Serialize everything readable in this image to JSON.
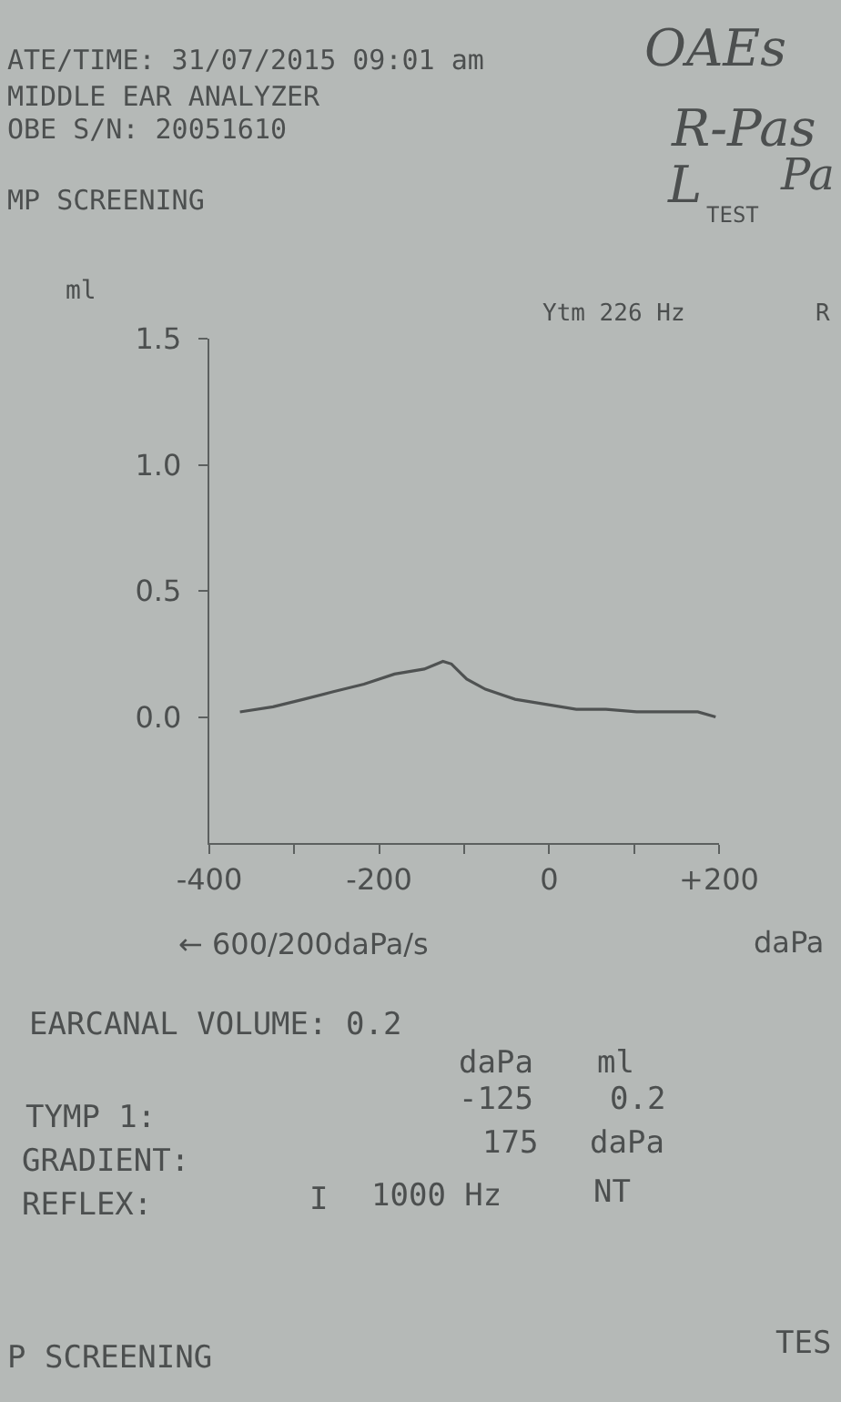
{
  "chart_data": {
    "type": "line",
    "x": [
      -364,
      -325,
      -289,
      -254,
      -218,
      -182,
      -147,
      -125,
      -115,
      -97,
      -75,
      -40,
      -4,
      32,
      67,
      103,
      139,
      175,
      196
    ],
    "series": [
      {
        "color": "#4f5252",
        "values": [
          0.02,
          0.04,
          0.07,
          0.1,
          0.13,
          0.17,
          0.19,
          0.22,
          0.21,
          0.15,
          0.11,
          0.07,
          0.05,
          0.03,
          0.03,
          0.02,
          0.02,
          0.02,
          0.0
        ]
      }
    ],
    "xlim": [
      -400,
      200
    ],
    "ylim": [
      -0.5,
      1.5
    ],
    "xticks": [
      -400,
      {
        "value": -300,
        "label": null
      },
      -200,
      {
        "value": -100,
        "label": null
      },
      0,
      {
        "value": 100,
        "label": null
      },
      {
        "value": 200,
        "label": "+200"
      }
    ],
    "yticks": [
      {
        "value": 0,
        "label": "0.0"
      },
      0.5,
      {
        "value": 1,
        "label": "1.0"
      },
      1.5
    ],
    "xlabel": "daPa",
    "ylabel": "ml",
    "grid": false,
    "line_style": "solid",
    "annotations": [
      "ATE/TIME: 31/07/2015 09:01 am",
      "MIDDLE EAR ANALYZER",
      "OBE S/N: 20051610",
      "MP SCREENING",
      "TEST",
      "OAEs",
      "R-Pas",
      "L",
      "Pa",
      "Ytm 226 Hz",
      "R",
      "← 600/200daPa/s",
      "EARCANAL VOLUME: 0.2",
      "daPa",
      "ml",
      "TYMP 1:",
      "-125",
      "0.2",
      "GRADIENT:",
      "175",
      "daPa",
      "REFLEX:",
      "I",
      "1000 Hz",
      "NT",
      "P SCREENING",
      "TES"
    ]
  }
}
